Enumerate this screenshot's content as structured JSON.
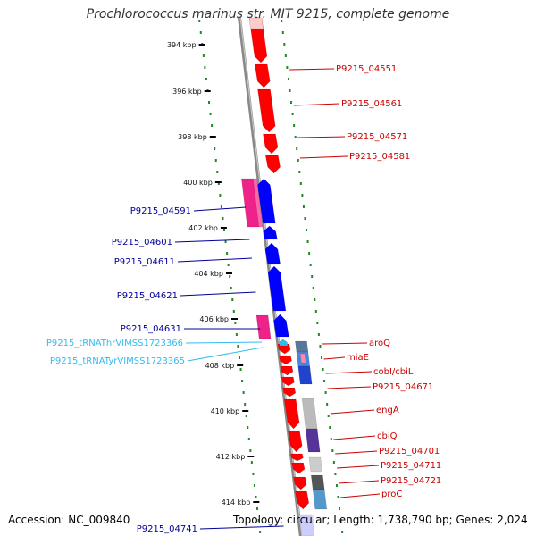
{
  "title": "Prochlorococcus marinus str. MIT 9215, complete genome",
  "footer": {
    "accession": "Accession: NC_009840",
    "topology": "Topology: circular; Length: 1,738,790 bp; Genes: 2,024"
  },
  "colors": {
    "forward_gene": "#ff0000",
    "reverse_gene": "#0000ff",
    "forward_label": "#cc0000",
    "reverse_label": "#000099",
    "trna": "#33bbee",
    "pseudo_gene": "#ee2288",
    "backbone": "#888888",
    "tick": "#228822"
  },
  "ruler": [
    "394 kbp",
    "396 kbp",
    "398 kbp",
    "400 kbp",
    "402 kbp",
    "404 kbp",
    "406 kbp",
    "408 kbp",
    "410 kbp",
    "412 kbp",
    "414 kbp"
  ],
  "forward_labels": [
    "P9215_04551",
    "P9215_04561",
    "P9215_04571",
    "P9215_04581",
    "aroQ",
    "miaE",
    "cobI/cbiL",
    "P9215_04671",
    "engA",
    "cbiQ",
    "P9215_04701",
    "P9215_04711",
    "P9215_04721",
    "proC"
  ],
  "reverse_labels": [
    "P9215_04591",
    "P9215_04601",
    "P9215_04611",
    "P9215_04621",
    "P9215_04631",
    "P9215_tRNAThrVIMSS1723366",
    "P9215_tRNATyrVIMSS1723365",
    "P9215_04741"
  ]
}
